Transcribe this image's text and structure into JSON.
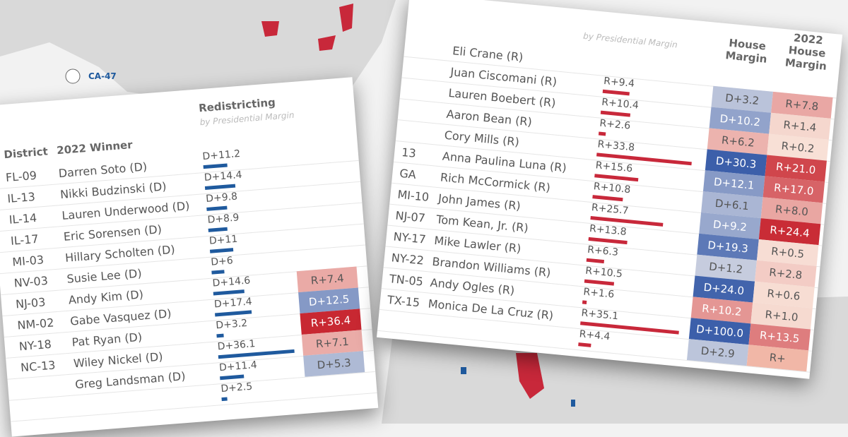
{
  "colors": {
    "republican": "#c8283a",
    "democrat": "#1f5a9e",
    "map": "#d9d9d9"
  },
  "map": {
    "label": "CA-47"
  },
  "left_table": {
    "headers": {
      "district": "District",
      "winner": "2022 Winner",
      "redistricting": "Redistricting",
      "subtitle": "by Presidential Margin"
    },
    "rows": [
      {
        "district": "FL-09",
        "winner": "Darren Soto (D)",
        "pres": "D+11.2",
        "v": 11.2,
        "house": ""
      },
      {
        "district": "IL-13",
        "winner": "Nikki Budzinski (D)",
        "pres": "D+14.4",
        "v": 14.4,
        "house": ""
      },
      {
        "district": "IL-14",
        "winner": "Lauren Underwood (D)",
        "pres": "D+9.8",
        "v": 9.8,
        "house": ""
      },
      {
        "district": "IL-17",
        "winner": "Eric Sorensen (D)",
        "pres": "D+8.9",
        "v": 8.9,
        "house": ""
      },
      {
        "district": "MI-03",
        "winner": "Hillary Scholten (D)",
        "pres": "D+11",
        "v": 11,
        "house": ""
      },
      {
        "district": "NV-03",
        "winner": "Susie Lee (D)",
        "pres": "D+6",
        "v": 6,
        "house": ""
      },
      {
        "district": "NJ-03",
        "winner": "Andy Kim (D)",
        "pres": "D+14.6",
        "v": 14.6,
        "house": "R+7.4"
      },
      {
        "district": "NM-02",
        "winner": "Gabe Vasquez (D)",
        "pres": "D+17.4",
        "v": 17.4,
        "house": "D+12.5"
      },
      {
        "district": "NY-18",
        "winner": "Pat Ryan (D)",
        "pres": "D+3.2",
        "v": 3.2,
        "house": "R+36.4"
      },
      {
        "district": "NC-13",
        "winner": "Wiley Nickel (D)",
        "pres": "D+36.1",
        "v": 36.1,
        "house": "R+7.1"
      },
      {
        "district": "",
        "winner": "Greg Landsman (D)",
        "pres": "D+11.4",
        "v": 11.4,
        "house": "D+5.3"
      },
      {
        "district": "",
        "winner": "",
        "pres": "D+2.5",
        "v": 2.5,
        "house": ""
      }
    ]
  },
  "right_table": {
    "headers": {
      "subtitle": "by Presidential Margin",
      "house1": "House Margin",
      "house2": "2022 House Margin"
    },
    "rows": [
      {
        "district": "",
        "winner": "Eli Crane (R)",
        "pres": "",
        "v": 0,
        "h1": "",
        "h2": ""
      },
      {
        "district": "",
        "winner": "Juan Ciscomani (R)",
        "pres": "R+9.4",
        "v": 9.4,
        "h1": "D+3.2",
        "h2": "R+7.8"
      },
      {
        "district": "",
        "winner": "Lauren Boebert (R)",
        "pres": "R+10.4",
        "v": 10.4,
        "h1": "D+10.2",
        "h2": "R+1.4"
      },
      {
        "district": "",
        "winner": "Aaron Bean (R)",
        "pres": "R+2.6",
        "v": 2.6,
        "h1": "R+6.2",
        "h2": "R+0.2"
      },
      {
        "district": "",
        "winner": "Cory Mills (R)",
        "pres": "R+33.8",
        "v": 33.8,
        "h1": "D+30.3",
        "h2": "R+21.0"
      },
      {
        "district": "13",
        "winner": "Anna Paulina Luna (R)",
        "pres": "R+15.6",
        "v": 15.6,
        "h1": "D+12.1",
        "h2": "R+17.0"
      },
      {
        "district": "GA",
        "winner": "Rich McCormick (R)",
        "pres": "R+10.8",
        "v": 10.8,
        "h1": "D+6.1",
        "h2": "R+8.0"
      },
      {
        "district": "MI-10",
        "winner": "John James (R)",
        "pres": "R+25.7",
        "v": 25.7,
        "h1": "D+9.2",
        "h2": "R+24.4"
      },
      {
        "district": "NJ-07",
        "winner": "Tom Kean, Jr. (R)",
        "pres": "R+13.8",
        "v": 13.8,
        "h1": "D+19.3",
        "h2": "R+0.5"
      },
      {
        "district": "NY-17",
        "winner": "Mike Lawler (R)",
        "pres": "R+6.3",
        "v": 6.3,
        "h1": "D+1.2",
        "h2": "R+2.8"
      },
      {
        "district": "NY-22",
        "winner": "Brandon Williams (R)",
        "pres": "R+10.5",
        "v": 10.5,
        "h1": "D+24.0",
        "h2": "R+0.6"
      },
      {
        "district": "TN-05",
        "winner": "Andy Ogles (R)",
        "pres": "R+1.6",
        "v": 1.6,
        "h1": "R+10.2",
        "h2": "R+1.0"
      },
      {
        "district": "TX-15",
        "winner": "Monica De La Cruz (R)",
        "pres": "R+35.1",
        "v": 35.1,
        "h1": "D+100.0",
        "h2": "R+13.5"
      },
      {
        "district": "",
        "winner": "",
        "pres": "R+4.4",
        "v": 4.4,
        "h1": "D+2.9",
        "h2": "R+"
      }
    ]
  }
}
